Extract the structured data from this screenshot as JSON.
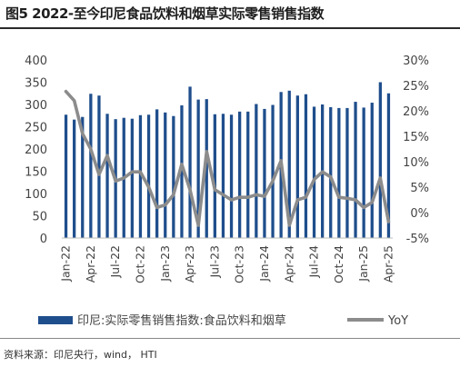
{
  "title": "图5  2022-至今印尼食品饮料和烟草实际零售销售指数",
  "source": "资料来源：印尼央行，wind， HTI",
  "colors": {
    "bar": "#1f4e8c",
    "line": "#8c8c8c",
    "axis": "#444444"
  },
  "chart_data": {
    "type": "bar",
    "combo_line": true,
    "left_axis": {
      "ticks": [
        "0",
        "50",
        "100",
        "150",
        "200",
        "250",
        "300",
        "350",
        "400"
      ],
      "ylim": [
        0,
        400
      ]
    },
    "right_axis": {
      "ticks": [
        "-5%",
        "0%",
        "5%",
        "10%",
        "15%",
        "20%",
        "25%",
        "30%"
      ],
      "ylim": [
        -5,
        30
      ]
    },
    "x_tick_labels": [
      "Jan-22",
      "Apr-22",
      "Jul-22",
      "Oct-22",
      "Jan-23",
      "Apr-23",
      "Jul-23",
      "Oct-23",
      "Jan-24",
      "Apr-24",
      "Jul-24",
      "Oct-24",
      "Jan-25",
      "Apr-25"
    ],
    "categories": [
      "Jan-22",
      "Feb-22",
      "Mar-22",
      "Apr-22",
      "May-22",
      "Jun-22",
      "Jul-22",
      "Aug-22",
      "Sep-22",
      "Oct-22",
      "Nov-22",
      "Dec-22",
      "Jan-23",
      "Feb-23",
      "Mar-23",
      "Apr-23",
      "May-23",
      "Jun-23",
      "Jul-23",
      "Aug-23",
      "Sep-23",
      "Oct-23",
      "Nov-23",
      "Dec-23",
      "Jan-24",
      "Feb-24",
      "Mar-24",
      "Apr-24",
      "May-24",
      "Jun-24",
      "Jul-24",
      "Aug-24",
      "Sep-24",
      "Oct-24",
      "Nov-24",
      "Dec-24",
      "Jan-25",
      "Feb-25",
      "Mar-25",
      "Apr-25"
    ],
    "series": [
      {
        "name": "印尼:实际零售销售指数:食品饮料和烟草",
        "type": "bar",
        "axis": "left",
        "values": [
          277,
          266,
          272,
          324,
          320,
          279,
          267,
          270,
          268,
          276,
          277,
          289,
          282,
          274,
          298,
          340,
          311,
          312,
          278,
          279,
          277,
          284,
          284,
          301,
          290,
          299,
          328,
          331,
          320,
          323,
          295,
          300,
          294,
          292,
          292,
          306,
          293,
          304,
          350,
          325
        ]
      },
      {
        "name": "YoY",
        "type": "line",
        "axis": "right",
        "values": [
          23.8,
          22.0,
          15.5,
          12.5,
          7.5,
          11.2,
          6.2,
          6.8,
          8.0,
          8.0,
          5.0,
          1.0,
          1.5,
          3.5,
          9.5,
          4.5,
          -2.5,
          12.0,
          4.5,
          3.5,
          2.5,
          3.0,
          3.0,
          3.5,
          3.2,
          6.2,
          10.2,
          -2.5,
          2.5,
          3.0,
          6.5,
          8.0,
          7.0,
          3.0,
          2.8,
          2.5,
          1.0,
          2.0,
          6.8,
          -1.8
        ]
      }
    ]
  },
  "legend": {
    "bar_label": "印尼:实际零售销售指数:食品饮料和烟草",
    "line_label": "YoY"
  }
}
